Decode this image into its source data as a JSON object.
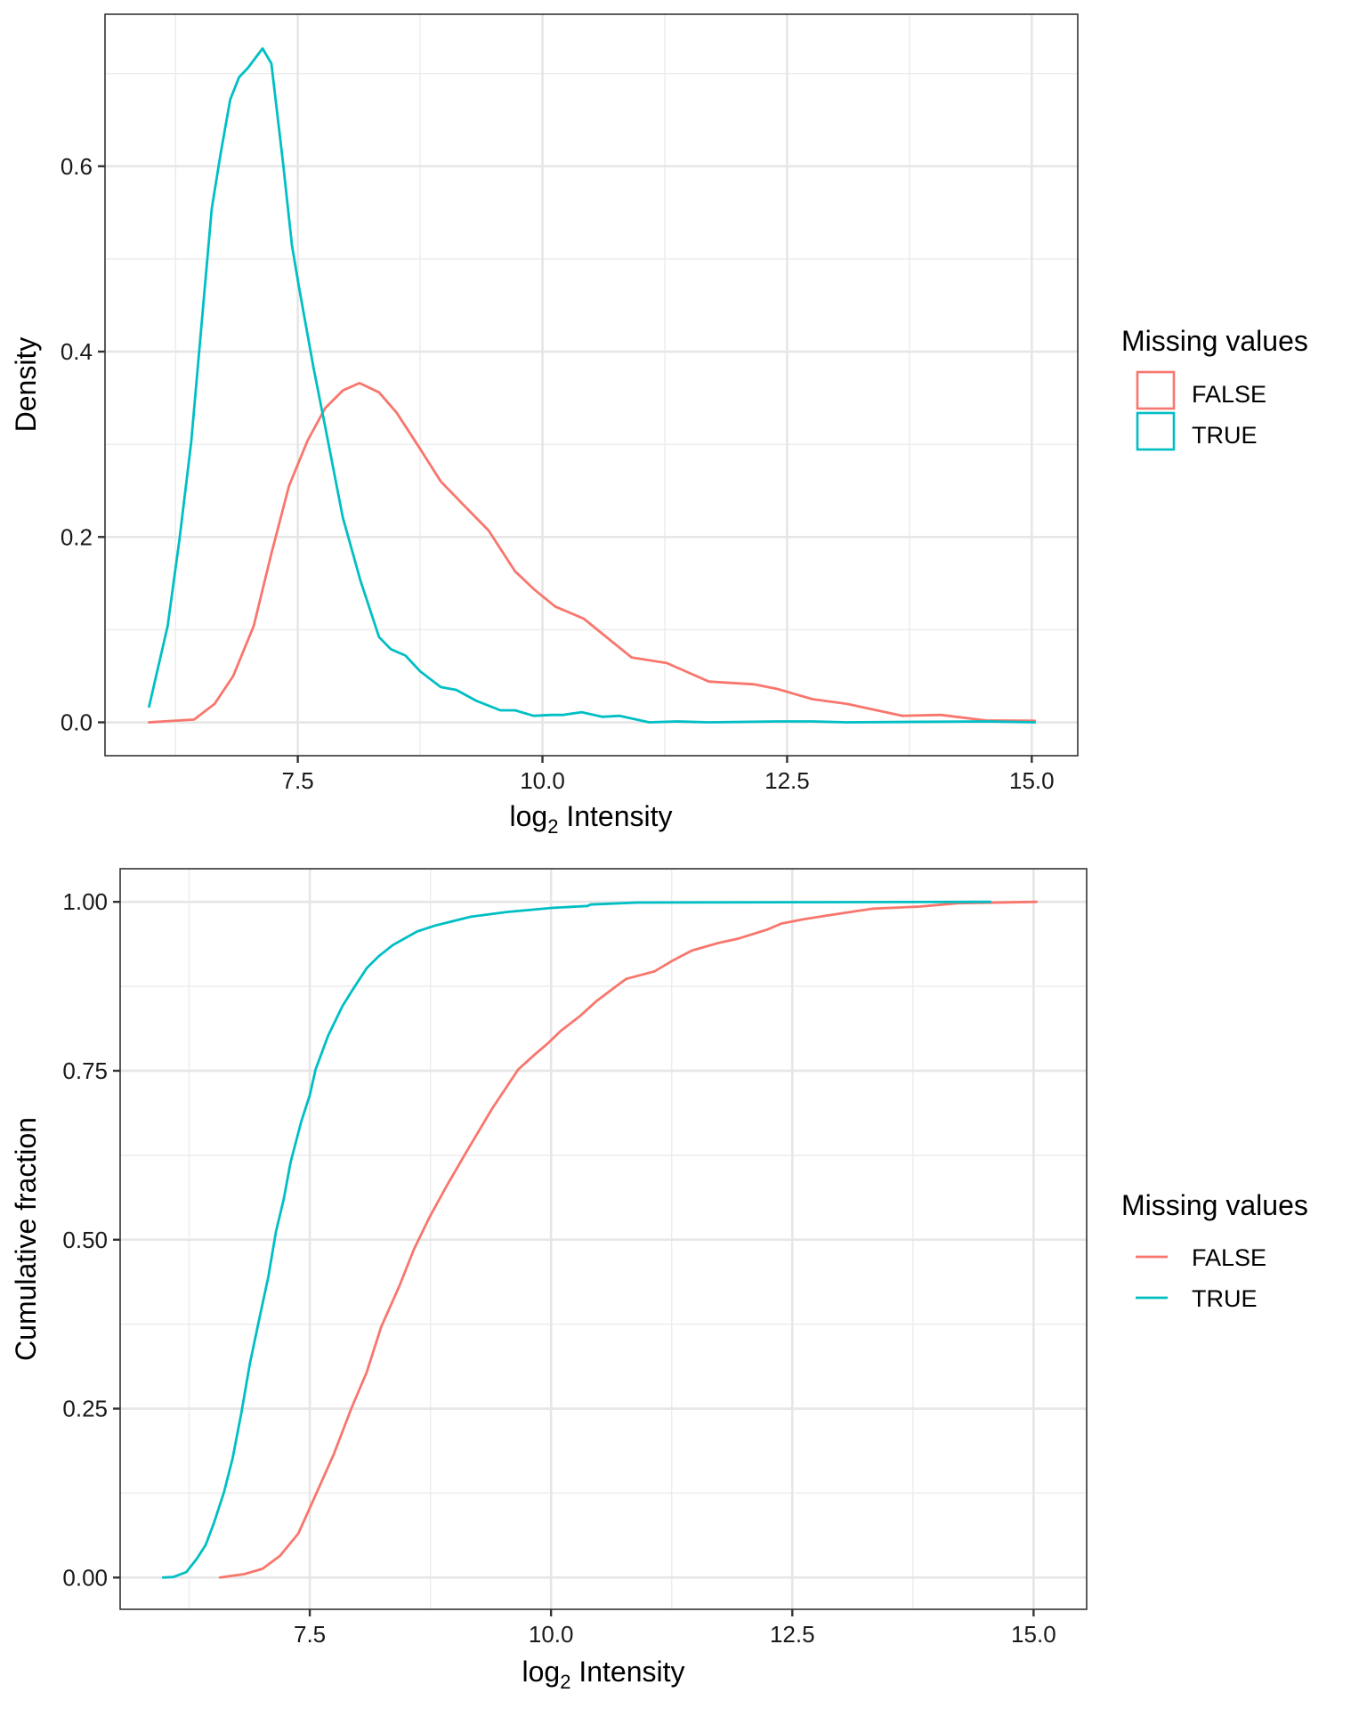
{
  "chart_data": [
    {
      "type": "line",
      "subtype": "density",
      "title": "",
      "xlabel": "log2 Intensity",
      "xlabel_main": "log",
      "xlabel_sub": "2",
      "xlabel_rest": " Intensity",
      "ylabel": "Density",
      "xlim": [
        5.53,
        15.47
      ],
      "ylim": [
        -0.036,
        0.764
      ],
      "x_ticks": [
        7.5,
        10.0,
        12.5,
        15.0
      ],
      "x_tick_labels": [
        "7.5",
        "10.0",
        "12.5",
        "15.0"
      ],
      "x_minor": [
        6.25,
        8.75,
        11.25,
        13.75
      ],
      "y_ticks": [
        0.0,
        0.2,
        0.4,
        0.6
      ],
      "y_tick_labels": [
        "0.0",
        "0.2",
        "0.4",
        "0.6"
      ],
      "y_minor": [
        0.1,
        0.3,
        0.5,
        0.7
      ],
      "grid": true,
      "legend": {
        "title": "Missing values",
        "placement": "right",
        "key": "box",
        "entries": [
          "FALSE",
          "TRUE"
        ]
      },
      "series": [
        {
          "name": "FALSE",
          "color": "#F8766D",
          "x": [
            5.98,
            6.44,
            6.65,
            6.84,
            7.05,
            7.23,
            7.41,
            7.6,
            7.78,
            7.96,
            8.13,
            8.33,
            8.51,
            8.75,
            8.96,
            9.18,
            9.45,
            9.72,
            9.92,
            10.13,
            10.42,
            10.63,
            10.91,
            11.27,
            11.7,
            12.16,
            12.4,
            12.76,
            13.11,
            13.68,
            14.07,
            14.53,
            15.03
          ],
          "y": [
            0.0,
            0.003,
            0.02,
            0.05,
            0.104,
            0.182,
            0.255,
            0.304,
            0.339,
            0.358,
            0.366,
            0.356,
            0.334,
            0.295,
            0.26,
            0.236,
            0.207,
            0.163,
            0.143,
            0.125,
            0.112,
            0.094,
            0.07,
            0.064,
            0.044,
            0.041,
            0.036,
            0.025,
            0.02,
            0.007,
            0.008,
            0.002,
            0.0016
          ]
        },
        {
          "name": "TRUE",
          "color": "#00BFC4",
          "x": [
            5.98,
            6.17,
            6.29,
            6.41,
            6.53,
            6.62,
            6.71,
            6.81,
            6.9,
            6.99,
            7.14,
            7.23,
            7.35,
            7.44,
            7.51,
            7.66,
            7.78,
            7.96,
            8.14,
            8.33,
            8.45,
            8.6,
            8.75,
            8.96,
            9.12,
            9.33,
            9.57,
            9.72,
            9.91,
            10.09,
            10.21,
            10.4,
            10.61,
            10.79,
            11.09,
            11.37,
            11.7,
            12.4,
            12.76,
            13.11,
            14.53,
            15.03
          ],
          "y": [
            0.017,
            0.104,
            0.197,
            0.302,
            0.446,
            0.554,
            0.613,
            0.672,
            0.696,
            0.706,
            0.727,
            0.711,
            0.603,
            0.515,
            0.471,
            0.383,
            0.319,
            0.221,
            0.153,
            0.092,
            0.079,
            0.072,
            0.055,
            0.038,
            0.035,
            0.023,
            0.013,
            0.013,
            0.007,
            0.008,
            0.008,
            0.011,
            0.006,
            0.007,
            0.0,
            0.001,
            0.0,
            0.001,
            0.001,
            0.0,
            0.001,
            0.0
          ]
        }
      ]
    },
    {
      "type": "line",
      "subtype": "ecdf",
      "title": "",
      "xlabel": "log2 Intensity",
      "xlabel_main": "log",
      "xlabel_sub": "2",
      "xlabel_rest": " Intensity",
      "ylabel": "Cumulative fraction",
      "xlim": [
        5.535,
        15.55
      ],
      "ylim": [
        -0.047,
        1.049
      ],
      "x_ticks": [
        7.5,
        10.0,
        12.5,
        15.0
      ],
      "x_tick_labels": [
        "7.5",
        "10.0",
        "12.5",
        "15.0"
      ],
      "x_minor": [
        6.25,
        8.75,
        11.25,
        13.75
      ],
      "y_ticks": [
        0.0,
        0.25,
        0.5,
        0.75,
        1.0
      ],
      "y_tick_labels": [
        "0.00",
        "0.25",
        "0.50",
        "0.75",
        "1.00"
      ],
      "y_minor": [
        0.125,
        0.375,
        0.625,
        0.875
      ],
      "grid": true,
      "legend": {
        "title": "Missing values",
        "placement": "right",
        "key": "line",
        "entries": [
          "FALSE",
          "TRUE"
        ]
      },
      "series": [
        {
          "name": "FALSE",
          "color": "#F8766D",
          "x": [
            6.57,
            6.82,
            7.01,
            7.19,
            7.38,
            7.56,
            7.75,
            7.93,
            8.09,
            8.24,
            8.43,
            8.58,
            8.74,
            8.92,
            9.11,
            9.39,
            9.66,
            9.83,
            9.97,
            10.1,
            10.3,
            10.47,
            10.74,
            10.78,
            11.07,
            11.26,
            11.46,
            11.73,
            11.95,
            12.24,
            12.39,
            12.61,
            12.87,
            13.34,
            13.82,
            14.22,
            15.03
          ],
          "y": [
            0.0,
            0.005,
            0.013,
            0.032,
            0.065,
            0.122,
            0.183,
            0.25,
            0.304,
            0.371,
            0.432,
            0.486,
            0.533,
            0.58,
            0.627,
            0.694,
            0.752,
            0.774,
            0.791,
            0.809,
            0.831,
            0.853,
            0.882,
            0.886,
            0.897,
            0.913,
            0.928,
            0.939,
            0.946,
            0.959,
            0.968,
            0.974,
            0.98,
            0.99,
            0.993,
            0.998,
            1.0
          ]
        },
        {
          "name": "TRUE",
          "color": "#00BFC4",
          "x": [
            5.98,
            6.09,
            6.22,
            6.33,
            6.42,
            6.51,
            6.61,
            6.7,
            6.79,
            6.88,
            6.98,
            7.07,
            7.15,
            7.23,
            7.3,
            7.41,
            7.5,
            7.56,
            7.69,
            7.84,
            7.94,
            8.09,
            8.21,
            8.36,
            8.61,
            8.8,
            9.17,
            9.54,
            10.01,
            10.38,
            10.41,
            10.89,
            14.55
          ],
          "y": [
            0.0,
            0.001,
            0.008,
            0.028,
            0.048,
            0.082,
            0.126,
            0.176,
            0.243,
            0.317,
            0.385,
            0.445,
            0.512,
            0.56,
            0.614,
            0.674,
            0.714,
            0.752,
            0.802,
            0.846,
            0.869,
            0.902,
            0.919,
            0.936,
            0.956,
            0.965,
            0.978,
            0.985,
            0.991,
            0.994,
            0.996,
            0.999,
            1.0
          ]
        }
      ]
    }
  ]
}
